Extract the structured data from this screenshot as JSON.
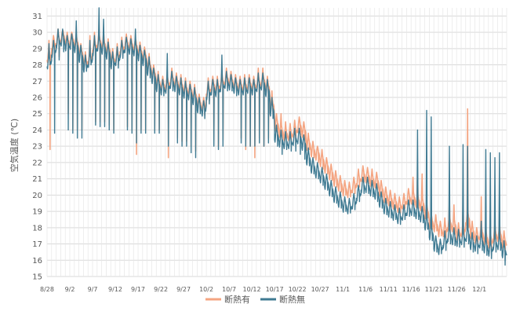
{
  "chart_data": {
    "type": "line",
    "title": "",
    "ylabel": "空気温度 (℃)",
    "xlabel": "",
    "ylim": [
      15,
      31.5
    ],
    "yticks": [
      15,
      16,
      17,
      18,
      19,
      20,
      21,
      22,
      23,
      24,
      25,
      26,
      27,
      28,
      29,
      30,
      31
    ],
    "x_tick_labels": [
      "8/28",
      "9/2",
      "9/7",
      "9/12",
      "9/17",
      "9/22",
      "9/27",
      "10/2",
      "10/7",
      "10/12",
      "10/17",
      "10/22",
      "10/27",
      "11/1",
      "11/6",
      "11/11",
      "11/16",
      "11/21",
      "11/26",
      "12/1"
    ],
    "x_start": "8/28",
    "x_end_days": 101,
    "grid": true,
    "legend_position": "bottom",
    "series": [
      {
        "name": "断熱有",
        "color": "#f4a582",
        "daily": [
          [
            28.6,
            29.5,
            22.8
          ],
          [
            29.3,
            29.8,
            28.2
          ],
          [
            29.6,
            30.2,
            28.5
          ],
          [
            29.8,
            30.1,
            29.2
          ],
          [
            29.5,
            30.0,
            25.0
          ],
          [
            29.6,
            30.0,
            24.0
          ],
          [
            29.4,
            29.9,
            24.0
          ],
          [
            28.8,
            29.3,
            24.0
          ],
          [
            28.2,
            28.8,
            27.8
          ],
          [
            28.5,
            29.8,
            28.2
          ],
          [
            29.2,
            30.0,
            24.5
          ],
          [
            29.5,
            30.2,
            24.5
          ],
          [
            29.3,
            30.0,
            24.5
          ],
          [
            29.0,
            29.6,
            24.3
          ],
          [
            28.4,
            29.0,
            24.0
          ],
          [
            28.6,
            29.3,
            28.0
          ],
          [
            29.1,
            29.7,
            28.6
          ],
          [
            29.4,
            29.9,
            24.2
          ],
          [
            29.3,
            29.8,
            24.0
          ],
          [
            29.2,
            29.6,
            22.5
          ],
          [
            28.9,
            29.4,
            24.0
          ],
          [
            28.6,
            29.1,
            24.0
          ],
          [
            28.0,
            28.7,
            27.5
          ],
          [
            27.5,
            28.0,
            24.0
          ],
          [
            27.0,
            27.6,
            24.0
          ],
          [
            26.8,
            27.3,
            26.3
          ],
          [
            26.9,
            27.4,
            22.3
          ],
          [
            27.2,
            27.8,
            26.6
          ],
          [
            27.0,
            27.5,
            23.5
          ],
          [
            26.8,
            27.4,
            23.3
          ],
          [
            26.6,
            27.2,
            23.3
          ],
          [
            26.5,
            27.0,
            23.0
          ],
          [
            26.2,
            26.8,
            22.7
          ],
          [
            25.7,
            26.2,
            25.2
          ],
          [
            25.5,
            26.0,
            24.9
          ],
          [
            26.5,
            27.2,
            25.8
          ],
          [
            26.8,
            27.3,
            23.4
          ],
          [
            26.7,
            27.3,
            23.0
          ],
          [
            27.0,
            27.6,
            23.4
          ],
          [
            27.2,
            27.8,
            26.6
          ],
          [
            27.1,
            27.6,
            26.6
          ],
          [
            26.9,
            27.4,
            26.3
          ],
          [
            26.8,
            27.3,
            23.5
          ],
          [
            26.8,
            27.4,
            22.8
          ],
          [
            26.9,
            27.4,
            23.0
          ],
          [
            26.8,
            27.3,
            22.3
          ],
          [
            27.0,
            27.8,
            23.5
          ],
          [
            27.1,
            27.8,
            23.0
          ],
          [
            26.7,
            27.3,
            23.5
          ],
          [
            25.6,
            26.4,
            25.0
          ],
          [
            24.4,
            25.0,
            23.6
          ],
          [
            24.0,
            25.0,
            23.0
          ],
          [
            23.8,
            24.5,
            23.4
          ],
          [
            23.8,
            24.4,
            23.2
          ],
          [
            24.0,
            24.6,
            23.2
          ],
          [
            24.3,
            24.8,
            23.2
          ],
          [
            24.0,
            24.5,
            23.0
          ],
          [
            23.2,
            23.8,
            22.8
          ],
          [
            22.8,
            23.3,
            22.3
          ],
          [
            22.6,
            23.0,
            22.0
          ],
          [
            22.2,
            22.8,
            21.6
          ],
          [
            21.8,
            22.3,
            21.3
          ],
          [
            21.4,
            21.9,
            20.9
          ],
          [
            21.0,
            21.5,
            20.5
          ],
          [
            20.7,
            21.2,
            20.2
          ],
          [
            20.4,
            20.9,
            20.0
          ],
          [
            20.3,
            20.8,
            19.9
          ],
          [
            20.6,
            21.1,
            20.1
          ],
          [
            21.0,
            21.6,
            20.5
          ],
          [
            21.3,
            21.8,
            20.8
          ],
          [
            21.2,
            21.7,
            20.7
          ],
          [
            21.0,
            21.6,
            20.4
          ],
          [
            20.9,
            21.4,
            20.3
          ],
          [
            20.4,
            20.9,
            19.9
          ],
          [
            20.0,
            20.5,
            19.5
          ],
          [
            19.8,
            20.3,
            19.3
          ],
          [
            19.6,
            20.1,
            19.2
          ],
          [
            19.4,
            19.9,
            18.9
          ],
          [
            19.6,
            20.1,
            19.2
          ],
          [
            19.9,
            20.4,
            19.4
          ],
          [
            19.9,
            21.1,
            19.4
          ],
          [
            19.7,
            21.4,
            19.2
          ],
          [
            19.5,
            21.3,
            18.9
          ],
          [
            19.0,
            19.5,
            18.6
          ],
          [
            18.4,
            18.9,
            17.9
          ],
          [
            18.2,
            18.8,
            17.8
          ],
          [
            17.9,
            18.4,
            17.5
          ],
          [
            17.9,
            18.6,
            17.3
          ],
          [
            18.3,
            19.8,
            17.7
          ],
          [
            18.2,
            19.4,
            17.6
          ],
          [
            17.7,
            18.3,
            17.2
          ],
          [
            17.9,
            19.5,
            17.3
          ],
          [
            18.6,
            25.3,
            18.0
          ],
          [
            17.8,
            18.4,
            17.2
          ],
          [
            17.5,
            18.0,
            17.0
          ],
          [
            17.7,
            19.9,
            17.1
          ],
          [
            17.4,
            18.2,
            16.8
          ],
          [
            17.2,
            17.7,
            16.6
          ],
          [
            17.6,
            18.3,
            17.0
          ],
          [
            17.6,
            18.6,
            17.1
          ],
          [
            17.2,
            17.8,
            16.5
          ]
        ]
      },
      {
        "name": "断熱無",
        "color": "#3f7a92",
        "daily": [
          [
            28.2,
            29.3,
            28.0
          ],
          [
            28.9,
            29.5,
            23.8
          ],
          [
            29.5,
            30.2,
            28.3
          ],
          [
            29.6,
            30.2,
            28.8
          ],
          [
            29.3,
            29.8,
            24.0
          ],
          [
            29.4,
            29.9,
            23.8
          ],
          [
            29.2,
            30.7,
            23.5
          ],
          [
            28.6,
            29.2,
            23.5
          ],
          [
            28.0,
            28.6,
            27.6
          ],
          [
            28.3,
            29.5,
            28.0
          ],
          [
            29.0,
            29.8,
            24.3
          ],
          [
            29.3,
            31.5,
            24.2
          ],
          [
            29.1,
            30.8,
            24.2
          ],
          [
            28.8,
            29.4,
            24.0
          ],
          [
            28.2,
            28.8,
            23.8
          ],
          [
            28.4,
            29.1,
            27.8
          ],
          [
            28.9,
            29.5,
            28.4
          ],
          [
            29.2,
            29.7,
            24.0
          ],
          [
            29.1,
            29.6,
            23.8
          ],
          [
            29.0,
            30.2,
            23.2
          ],
          [
            28.7,
            29.2,
            23.8
          ],
          [
            28.4,
            28.9,
            23.8
          ],
          [
            27.8,
            28.5,
            27.2
          ],
          [
            27.3,
            27.8,
            23.8
          ],
          [
            26.8,
            27.4,
            23.8
          ],
          [
            26.6,
            27.1,
            26.1
          ],
          [
            26.7,
            28.7,
            23.0
          ],
          [
            27.0,
            27.6,
            26.4
          ],
          [
            26.8,
            27.3,
            23.2
          ],
          [
            26.6,
            27.2,
            23.0
          ],
          [
            26.4,
            27.0,
            23.0
          ],
          [
            26.3,
            26.8,
            22.6
          ],
          [
            26.0,
            26.6,
            22.3
          ],
          [
            25.5,
            26.0,
            25.0
          ],
          [
            25.3,
            25.8,
            24.7
          ],
          [
            26.3,
            27.0,
            25.6
          ],
          [
            26.6,
            27.1,
            23.0
          ],
          [
            26.5,
            27.1,
            22.8
          ],
          [
            26.8,
            28.6,
            23.0
          ],
          [
            27.0,
            27.6,
            26.4
          ],
          [
            26.9,
            27.4,
            26.4
          ],
          [
            26.7,
            27.2,
            26.1
          ],
          [
            26.6,
            27.1,
            23.2
          ],
          [
            26.6,
            27.2,
            23.0
          ],
          [
            26.7,
            27.2,
            23.0
          ],
          [
            26.6,
            27.1,
            23.0
          ],
          [
            26.8,
            27.5,
            23.2
          ],
          [
            26.9,
            27.5,
            23.0
          ],
          [
            26.5,
            27.1,
            23.2
          ],
          [
            25.3,
            26.0,
            24.7
          ],
          [
            23.7,
            24.3,
            23.0
          ],
          [
            23.4,
            24.0,
            22.5
          ],
          [
            23.3,
            23.9,
            22.8
          ],
          [
            23.3,
            23.9,
            22.7
          ],
          [
            23.5,
            24.1,
            22.7
          ],
          [
            23.6,
            24.1,
            22.5
          ],
          [
            23.2,
            23.7,
            22.2
          ],
          [
            22.3,
            22.9,
            21.8
          ],
          [
            21.8,
            22.3,
            21.3
          ],
          [
            21.5,
            22.0,
            21.0
          ],
          [
            21.2,
            21.7,
            20.6
          ],
          [
            20.8,
            21.3,
            20.3
          ],
          [
            20.4,
            20.9,
            19.9
          ],
          [
            20.0,
            20.5,
            19.5
          ],
          [
            19.7,
            20.2,
            19.2
          ],
          [
            19.4,
            19.9,
            19.0
          ],
          [
            19.3,
            19.8,
            18.9
          ],
          [
            19.6,
            20.1,
            19.1
          ],
          [
            20.1,
            20.6,
            19.6
          ],
          [
            20.6,
            21.1,
            20.1
          ],
          [
            20.6,
            21.1,
            20.1
          ],
          [
            20.4,
            20.9,
            19.9
          ],
          [
            20.2,
            20.7,
            19.6
          ],
          [
            19.7,
            20.2,
            19.2
          ],
          [
            19.3,
            19.8,
            18.8
          ],
          [
            19.1,
            19.6,
            18.6
          ],
          [
            18.9,
            19.4,
            18.5
          ],
          [
            18.7,
            19.2,
            18.2
          ],
          [
            18.9,
            19.4,
            18.5
          ],
          [
            19.2,
            19.7,
            18.7
          ],
          [
            19.2,
            19.7,
            18.7
          ],
          [
            19.0,
            24.0,
            18.5
          ],
          [
            18.8,
            19.3,
            18.3
          ],
          [
            18.3,
            25.2,
            17.9
          ],
          [
            17.7,
            24.8,
            17.2
          ],
          [
            17.0,
            17.5,
            16.5
          ],
          [
            16.8,
            17.3,
            16.4
          ],
          [
            17.2,
            17.8,
            16.6
          ],
          [
            17.6,
            23.0,
            17.0
          ],
          [
            17.4,
            18.0,
            16.9
          ],
          [
            17.3,
            17.9,
            16.8
          ],
          [
            17.4,
            23.1,
            16.8
          ],
          [
            17.6,
            23.0,
            17.0
          ],
          [
            17.1,
            17.7,
            16.5
          ],
          [
            17.0,
            17.5,
            16.4
          ],
          [
            17.2,
            18.4,
            16.6
          ],
          [
            16.9,
            22.8,
            16.3
          ],
          [
            16.7,
            22.6,
            16.1
          ],
          [
            17.1,
            22.3,
            16.5
          ],
          [
            17.1,
            22.6,
            16.6
          ],
          [
            16.6,
            17.2,
            15.7
          ]
        ]
      }
    ]
  }
}
